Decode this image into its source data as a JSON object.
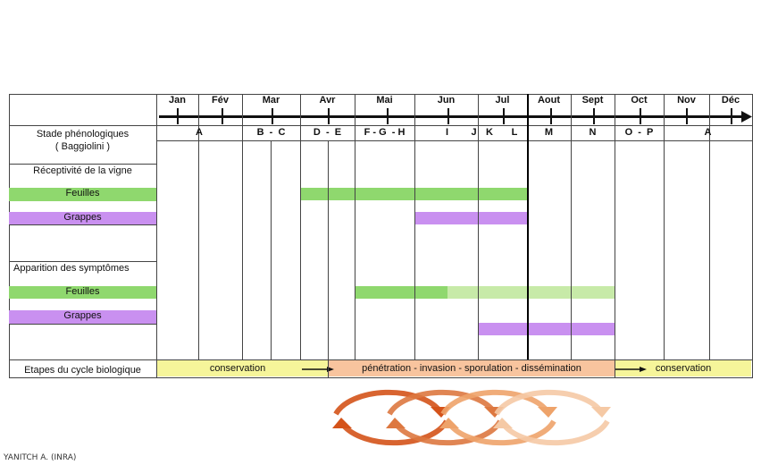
{
  "months": [
    "Jan",
    "Fév",
    "Mar",
    "Avr",
    "Mai",
    "Jun",
    "Jul",
    "Aout",
    "Sept",
    "Oct",
    "Nov",
    "Déc"
  ],
  "stages": [
    "A",
    "B  -  C",
    "D  -  E",
    "F - G  - H",
    "I",
    "J",
    "K",
    "L",
    "M",
    "N",
    "O  -  P",
    "A"
  ],
  "rows": {
    "stade": "Stade phénologiques",
    "stade_sub": "( Baggiolini )",
    "receptivite": "Réceptivité de la vigne",
    "feuilles": "Feuilles",
    "grappes": "Grappes",
    "apparition": "Apparition des symptômes",
    "feuilles2": "Feuilles",
    "grappes2": "Grappes",
    "etapes": "Etapes du cycle biologique"
  },
  "cycle": {
    "phase1": "conservation",
    "phase2": "pénétration - invasion - sporulation - dissémination",
    "phase3": "conservation"
  },
  "colors": {
    "feuilles": "#8fd86e",
    "feuilles_light": "#c7eaa8",
    "grappes": "#c990f0",
    "conservation": "#f6f59a",
    "infection": "#f8c49e"
  },
  "credit": "YANITCH A. (INRA)"
}
